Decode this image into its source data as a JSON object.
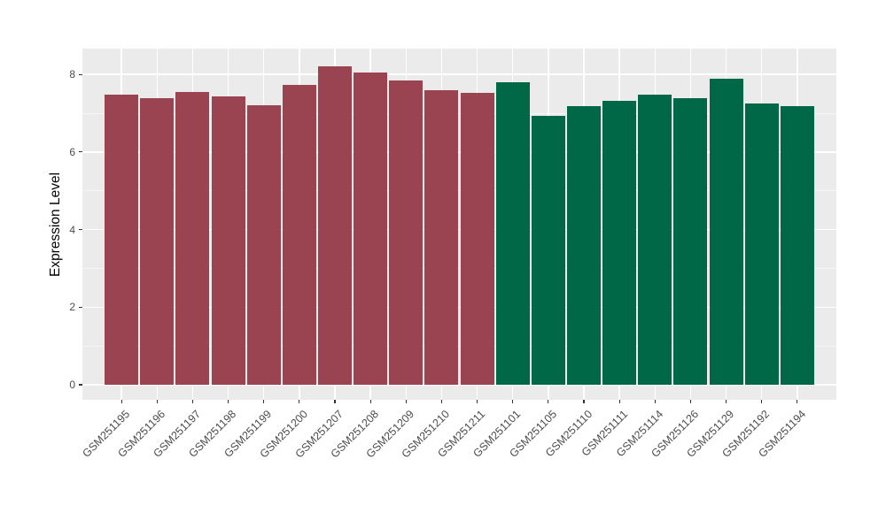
{
  "chart_data": {
    "type": "bar",
    "title": "",
    "xlabel": "",
    "ylabel": "Expression Level",
    "ylim": [
      -0.39,
      8.66
    ],
    "y_major_ticks": [
      0,
      2,
      4,
      6,
      8
    ],
    "y_minor_gridlines": [
      1,
      3,
      5,
      7
    ],
    "grid": "on",
    "legend": "none",
    "panel_background": "#EBEBEB",
    "gridline_color": "#FFFFFF",
    "tick_label_color": "#4D4D4D",
    "series": [
      {
        "name": "group-maroon",
        "color": "#9A4351",
        "categories": [
          "GSM251195",
          "GSM251196",
          "GSM251197",
          "GSM251198",
          "GSM251199",
          "GSM251200",
          "GSM251207",
          "GSM251208",
          "GSM251209",
          "GSM251210",
          "GSM251211"
        ],
        "values": [
          7.47,
          7.38,
          7.54,
          7.43,
          7.21,
          7.72,
          8.22,
          8.06,
          7.85,
          7.6,
          7.52
        ]
      },
      {
        "name": "group-green",
        "color": "#006747",
        "categories": [
          "GSM251101",
          "GSM251105",
          "GSM251110",
          "GSM251111",
          "GSM251114",
          "GSM251126",
          "GSM251129",
          "GSM251192",
          "GSM251194"
        ],
        "values": [
          7.81,
          6.94,
          7.18,
          7.31,
          7.48,
          7.39,
          7.9,
          7.25,
          7.18
        ]
      }
    ]
  }
}
